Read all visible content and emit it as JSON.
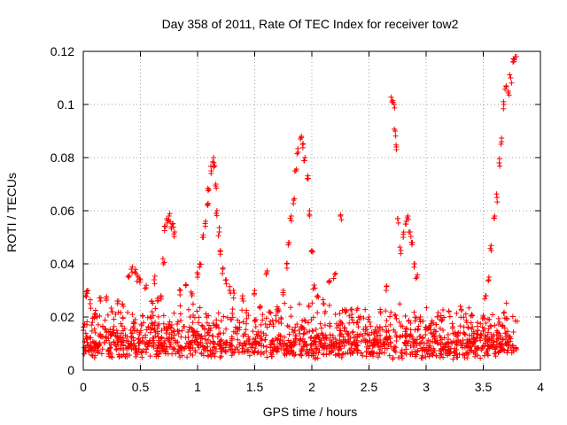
{
  "chart_data": {
    "type": "scatter",
    "title": "Day 358 of 2011, Rate Of TEC Index for receiver tow2",
    "xlabel": "GPS time / hours",
    "ylabel": "ROTI / TECUs",
    "xlim": [
      0,
      4
    ],
    "ylim": [
      0,
      0.12
    ],
    "xticks": [
      0,
      0.5,
      1,
      1.5,
      2,
      2.5,
      3,
      3.5,
      4
    ],
    "xtick_labels": [
      "0",
      "0.5",
      "1",
      "1.5",
      "2",
      "2.5",
      "3",
      "3.5",
      "4"
    ],
    "yticks": [
      0,
      0.02,
      0.04,
      0.06,
      0.08,
      0.1,
      0.12
    ],
    "ytick_labels": [
      "0",
      "0.02",
      "0.04",
      "0.06",
      "0.08",
      "0.1",
      "0.12"
    ],
    "grid": true,
    "legend": "none",
    "marker": "+",
    "marker_color": "#ff0000",
    "series": [
      {
        "name": "ROTI",
        "description": "dense baseline cloud ~0.005-0.02 TECU over 0-3.8 h (procedurally densified around listed points)",
        "points": [
          [
            0.0,
            0.015
          ],
          [
            0.02,
            0.028
          ],
          [
            0.04,
            0.03
          ],
          [
            0.06,
            0.025
          ],
          [
            0.08,
            0.018
          ],
          [
            0.1,
            0.021
          ],
          [
            0.15,
            0.026
          ],
          [
            0.2,
            0.027
          ],
          [
            0.25,
            0.022
          ],
          [
            0.3,
            0.025
          ],
          [
            0.35,
            0.024
          ],
          [
            0.4,
            0.035
          ],
          [
            0.42,
            0.038
          ],
          [
            0.45,
            0.037
          ],
          [
            0.48,
            0.035
          ],
          [
            0.5,
            0.034
          ],
          [
            0.55,
            0.031
          ],
          [
            0.6,
            0.026
          ],
          [
            0.62,
            0.034
          ],
          [
            0.65,
            0.026
          ],
          [
            0.68,
            0.028
          ],
          [
            0.7,
            0.04
          ],
          [
            0.72,
            0.054
          ],
          [
            0.73,
            0.057
          ],
          [
            0.75,
            0.058
          ],
          [
            0.77,
            0.054
          ],
          [
            0.78,
            0.055
          ],
          [
            0.8,
            0.052
          ],
          [
            0.85,
            0.03
          ],
          [
            0.9,
            0.032
          ],
          [
            0.95,
            0.028
          ],
          [
            1.0,
            0.035
          ],
          [
            1.02,
            0.04
          ],
          [
            1.05,
            0.05
          ],
          [
            1.07,
            0.056
          ],
          [
            1.09,
            0.062
          ],
          [
            1.1,
            0.068
          ],
          [
            1.12,
            0.075
          ],
          [
            1.14,
            0.08
          ],
          [
            1.15,
            0.077
          ],
          [
            1.16,
            0.07
          ],
          [
            1.17,
            0.06
          ],
          [
            1.19,
            0.052
          ],
          [
            1.2,
            0.045
          ],
          [
            1.22,
            0.038
          ],
          [
            1.25,
            0.034
          ],
          [
            1.28,
            0.03
          ],
          [
            1.32,
            0.029
          ],
          [
            1.4,
            0.026
          ],
          [
            1.5,
            0.03
          ],
          [
            1.55,
            0.024
          ],
          [
            1.6,
            0.036
          ],
          [
            1.7,
            0.022
          ],
          [
            1.75,
            0.03
          ],
          [
            1.78,
            0.04
          ],
          [
            1.8,
            0.048
          ],
          [
            1.82,
            0.058
          ],
          [
            1.84,
            0.064
          ],
          [
            1.86,
            0.075
          ],
          [
            1.88,
            0.082
          ],
          [
            1.9,
            0.087
          ],
          [
            1.92,
            0.085
          ],
          [
            1.94,
            0.08
          ],
          [
            1.96,
            0.072
          ],
          [
            1.98,
            0.06
          ],
          [
            2.0,
            0.045
          ],
          [
            2.02,
            0.032
          ],
          [
            2.05,
            0.028
          ],
          [
            2.1,
            0.025
          ],
          [
            2.15,
            0.033
          ],
          [
            2.2,
            0.036
          ],
          [
            2.25,
            0.058
          ],
          [
            2.3,
            0.022
          ],
          [
            2.35,
            0.021
          ],
          [
            2.4,
            0.018
          ],
          [
            2.5,
            0.02
          ],
          [
            2.6,
            0.022
          ],
          [
            2.65,
            0.03
          ],
          [
            2.7,
            0.101
          ],
          [
            2.72,
            0.1
          ],
          [
            2.73,
            0.09
          ],
          [
            2.74,
            0.083
          ],
          [
            2.75,
            0.057
          ],
          [
            2.78,
            0.045
          ],
          [
            2.8,
            0.05
          ],
          [
            2.82,
            0.055
          ],
          [
            2.84,
            0.058
          ],
          [
            2.86,
            0.052
          ],
          [
            2.88,
            0.048
          ],
          [
            2.9,
            0.04
          ],
          [
            2.92,
            0.035
          ],
          [
            2.95,
            0.02
          ],
          [
            3.0,
            0.016
          ],
          [
            3.1,
            0.02
          ],
          [
            3.2,
            0.022
          ],
          [
            3.3,
            0.024
          ],
          [
            3.4,
            0.021
          ],
          [
            3.45,
            0.015
          ],
          [
            3.5,
            0.02
          ],
          [
            3.52,
            0.028
          ],
          [
            3.55,
            0.035
          ],
          [
            3.57,
            0.045
          ],
          [
            3.6,
            0.058
          ],
          [
            3.62,
            0.065
          ],
          [
            3.64,
            0.078
          ],
          [
            3.66,
            0.086
          ],
          [
            3.68,
            0.1
          ],
          [
            3.7,
            0.107
          ],
          [
            3.72,
            0.105
          ],
          [
            3.74,
            0.11
          ],
          [
            3.76,
            0.116
          ],
          [
            3.78,
            0.118
          ]
        ]
      }
    ]
  }
}
